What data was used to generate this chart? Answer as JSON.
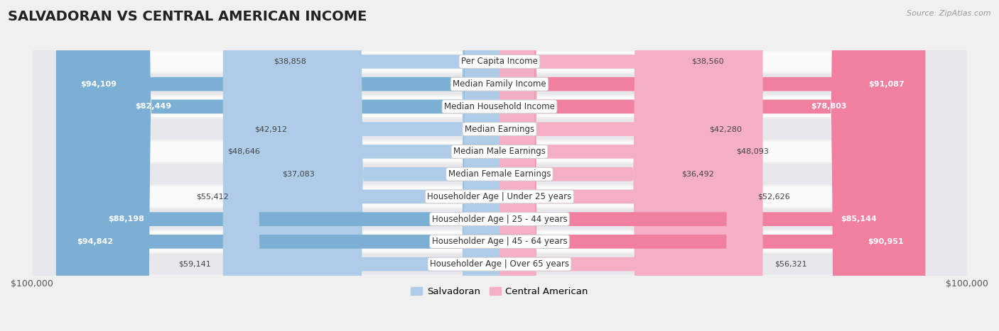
{
  "title": "SALVADORAN VS CENTRAL AMERICAN INCOME",
  "source": "Source: ZipAtlas.com",
  "categories": [
    "Per Capita Income",
    "Median Family Income",
    "Median Household Income",
    "Median Earnings",
    "Median Male Earnings",
    "Median Female Earnings",
    "Householder Age | Under 25 years",
    "Householder Age | 25 - 44 years",
    "Householder Age | 45 - 64 years",
    "Householder Age | Over 65 years"
  ],
  "salvadoran_values": [
    38858,
    94109,
    82449,
    42912,
    48646,
    37083,
    55412,
    88198,
    94842,
    59141
  ],
  "central_american_values": [
    38560,
    91087,
    78803,
    42280,
    48093,
    36492,
    52626,
    85144,
    90951,
    56321
  ],
  "max_value": 100000,
  "salv_color": "#7bafd4",
  "ca_color": "#f07fa0",
  "salv_color_light": "#aecce8",
  "ca_color_light": "#f4afc5",
  "background_color": "#f0f0f0",
  "row_bg_light": "#fafafa",
  "row_bg_dark": "#e8e8ec",
  "label_fontsize": 8.5,
  "value_fontsize": 8.0,
  "title_fontsize": 14,
  "bar_height": 0.62,
  "dark_threshold": 70000,
  "xlabel_left": "$100,000",
  "xlabel_right": "$100,000"
}
